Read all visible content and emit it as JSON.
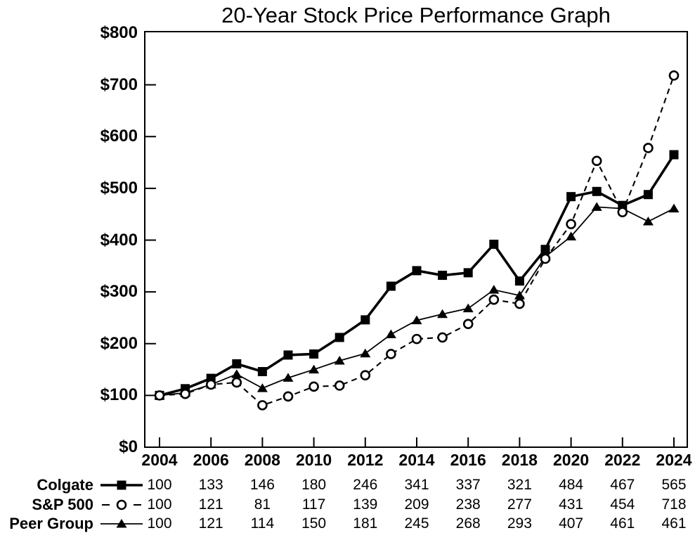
{
  "title": "20-Year Stock Price Performance Graph",
  "colors": {
    "foreground": "#000000",
    "background": "#ffffff"
  },
  "chart_data": {
    "type": "line",
    "title": "20-Year Stock Price Performance Graph",
    "xlabel": "",
    "ylabel": "",
    "ylim": [
      0,
      800
    ],
    "grid": false,
    "legend_position": "bottom-left-table",
    "x": [
      2004,
      2005,
      2006,
      2007,
      2008,
      2009,
      2010,
      2011,
      2012,
      2013,
      2014,
      2015,
      2016,
      2017,
      2018,
      2019,
      2020,
      2021,
      2022,
      2023,
      2024
    ],
    "x_tick_labels": [
      "2004",
      "2006",
      "2008",
      "2010",
      "2012",
      "2014",
      "2016",
      "2018",
      "2020",
      "2022",
      "2024"
    ],
    "y_ticks": [
      {
        "label": "$800",
        "value": 800
      },
      {
        "label": "$700",
        "value": 700
      },
      {
        "label": "$600",
        "value": 600
      },
      {
        "label": "$500",
        "value": 500
      },
      {
        "label": "$400",
        "value": 400
      },
      {
        "label": "$300",
        "value": 300
      },
      {
        "label": "$200",
        "value": 200
      },
      {
        "label": "$100",
        "value": 100
      },
      {
        "label": "$0",
        "value": 0
      }
    ],
    "series": [
      {
        "name": "Colgate",
        "marker": "filled-square",
        "line_style": "solid-thick",
        "values": [
          100,
          113,
          133,
          161,
          146,
          178,
          180,
          212,
          246,
          311,
          341,
          332,
          337,
          392,
          321,
          382,
          484,
          494,
          467,
          488,
          565
        ]
      },
      {
        "name": "S&P 500",
        "marker": "open-circle",
        "line_style": "dashed",
        "values": [
          100,
          103,
          121,
          125,
          81,
          98,
          117,
          119,
          139,
          180,
          209,
          212,
          238,
          285,
          277,
          364,
          431,
          553,
          454,
          578,
          718
        ]
      },
      {
        "name": "Peer Group",
        "marker": "filled-triangle",
        "line_style": "solid-thin",
        "values": [
          100,
          105,
          121,
          141,
          114,
          134,
          150,
          167,
          181,
          218,
          245,
          257,
          268,
          304,
          293,
          368,
          407,
          464,
          461,
          436,
          461
        ]
      }
    ]
  },
  "table": {
    "years": [
      "2004",
      "2006",
      "2008",
      "2010",
      "2012",
      "2014",
      "2016",
      "2018",
      "2020",
      "2022",
      "2024"
    ],
    "rows": [
      {
        "label": "Colgate",
        "marker": "filled-square",
        "values": [
          "100",
          "133",
          "146",
          "180",
          "246",
          "341",
          "337",
          "321",
          "484",
          "467",
          "565"
        ]
      },
      {
        "label": "S&P 500",
        "marker": "open-circle",
        "values": [
          "100",
          "121",
          "81",
          "117",
          "139",
          "209",
          "238",
          "277",
          "431",
          "454",
          "718"
        ]
      },
      {
        "label": "Peer Group",
        "marker": "filled-triangle",
        "values": [
          "100",
          "121",
          "114",
          "150",
          "181",
          "245",
          "268",
          "293",
          "407",
          "461",
          "461"
        ]
      }
    ]
  }
}
